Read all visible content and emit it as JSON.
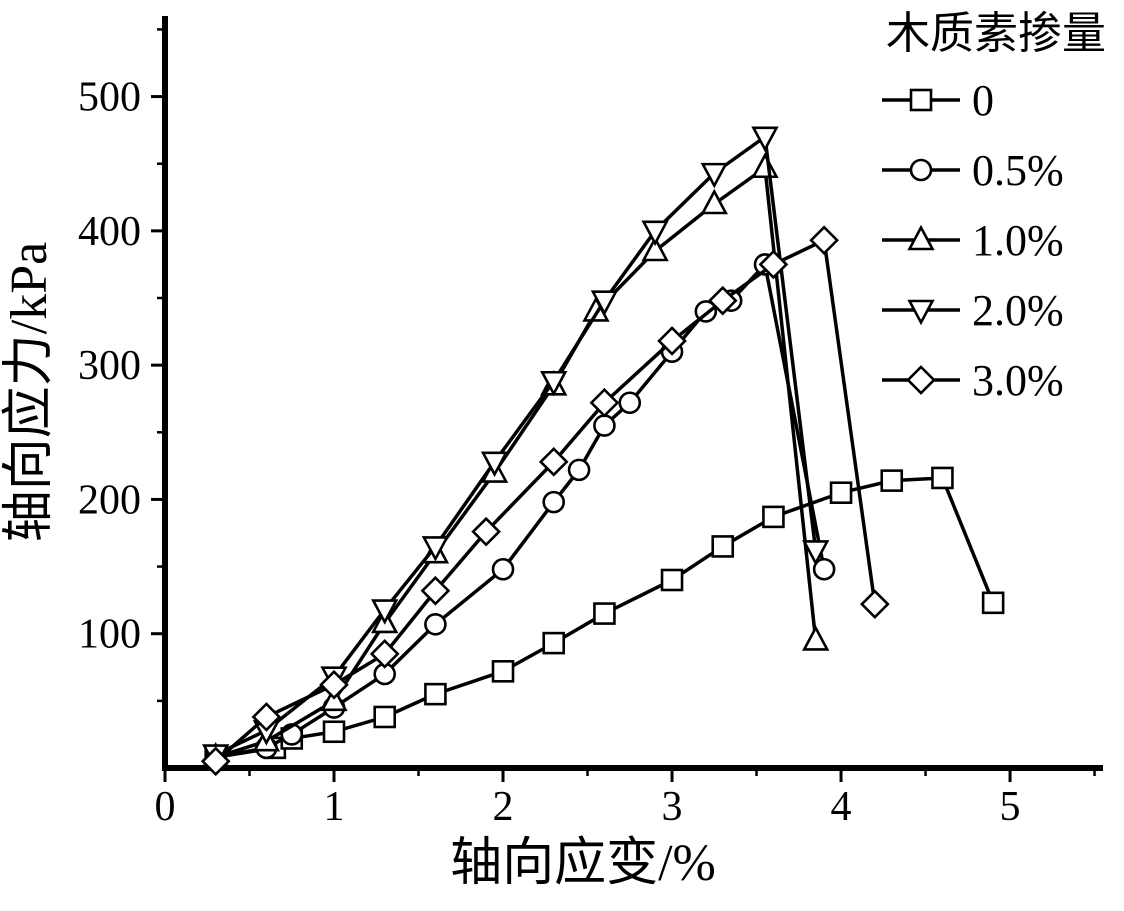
{
  "chart_data": {
    "type": "line",
    "title": "",
    "xlabel": "轴向应变/%",
    "ylabel": "轴向应力/kPa",
    "legend_title": "木质素掺量",
    "legend_position": "top-right",
    "grid": false,
    "xlim": [
      0,
      5.55
    ],
    "ylim": [
      0,
      560
    ],
    "x_ticks": [
      0,
      1,
      2,
      3,
      4,
      5
    ],
    "y_ticks": [
      100,
      200,
      300,
      400,
      500
    ],
    "x_minor_ticks": [
      0.5,
      1.5,
      2.5,
      3.5,
      4.5,
      5.5
    ],
    "y_minor_ticks": [
      50,
      150,
      250,
      350,
      450,
      550
    ],
    "line_color": "#000000",
    "marker_fill": "#ffffff",
    "series": [
      {
        "name": "0",
        "marker": "square",
        "x": [
          0.3,
          0.65,
          0.75,
          1.0,
          1.3,
          1.6,
          2.0,
          2.3,
          2.6,
          3.0,
          3.3,
          3.6,
          4.0,
          4.3,
          4.6,
          4.9
        ],
        "y": [
          8,
          15,
          22,
          27,
          38,
          55,
          72,
          93,
          115,
          140,
          165,
          187,
          205,
          214,
          216,
          123
        ]
      },
      {
        "name": "0.5%",
        "marker": "circle",
        "x": [
          0.3,
          0.6,
          0.75,
          1.0,
          1.3,
          1.6,
          2.0,
          2.3,
          2.45,
          2.6,
          2.75,
          3.0,
          3.2,
          3.35,
          3.55,
          3.9
        ],
        "y": [
          8,
          15,
          25,
          45,
          70,
          107,
          148,
          198,
          222,
          255,
          272,
          310,
          340,
          348,
          375,
          148
        ]
      },
      {
        "name": "1.0%",
        "marker": "triangle-up",
        "x": [
          0.3,
          0.6,
          1.0,
          1.3,
          1.6,
          1.95,
          2.3,
          2.55,
          2.9,
          3.25,
          3.55,
          3.85
        ],
        "y": [
          8,
          20,
          50,
          108,
          160,
          220,
          285,
          340,
          385,
          420,
          447,
          95
        ]
      },
      {
        "name": "2.0%",
        "marker": "triangle-down",
        "x": [
          0.3,
          0.6,
          1.0,
          1.3,
          1.6,
          1.95,
          2.3,
          2.6,
          2.9,
          3.25,
          3.55,
          3.85
        ],
        "y": [
          10,
          28,
          68,
          118,
          165,
          228,
          288,
          348,
          400,
          443,
          470,
          162
        ]
      },
      {
        "name": "3.0%",
        "marker": "diamond",
        "x": [
          0.3,
          0.6,
          1.0,
          1.3,
          1.6,
          1.9,
          2.3,
          2.6,
          3.0,
          3.3,
          3.6,
          3.9,
          4.2
        ],
        "y": [
          5,
          38,
          62,
          85,
          132,
          176,
          228,
          272,
          318,
          348,
          375,
          393,
          122
        ]
      }
    ]
  },
  "colors": {
    "axis": "#000000",
    "background": "#ffffff"
  }
}
